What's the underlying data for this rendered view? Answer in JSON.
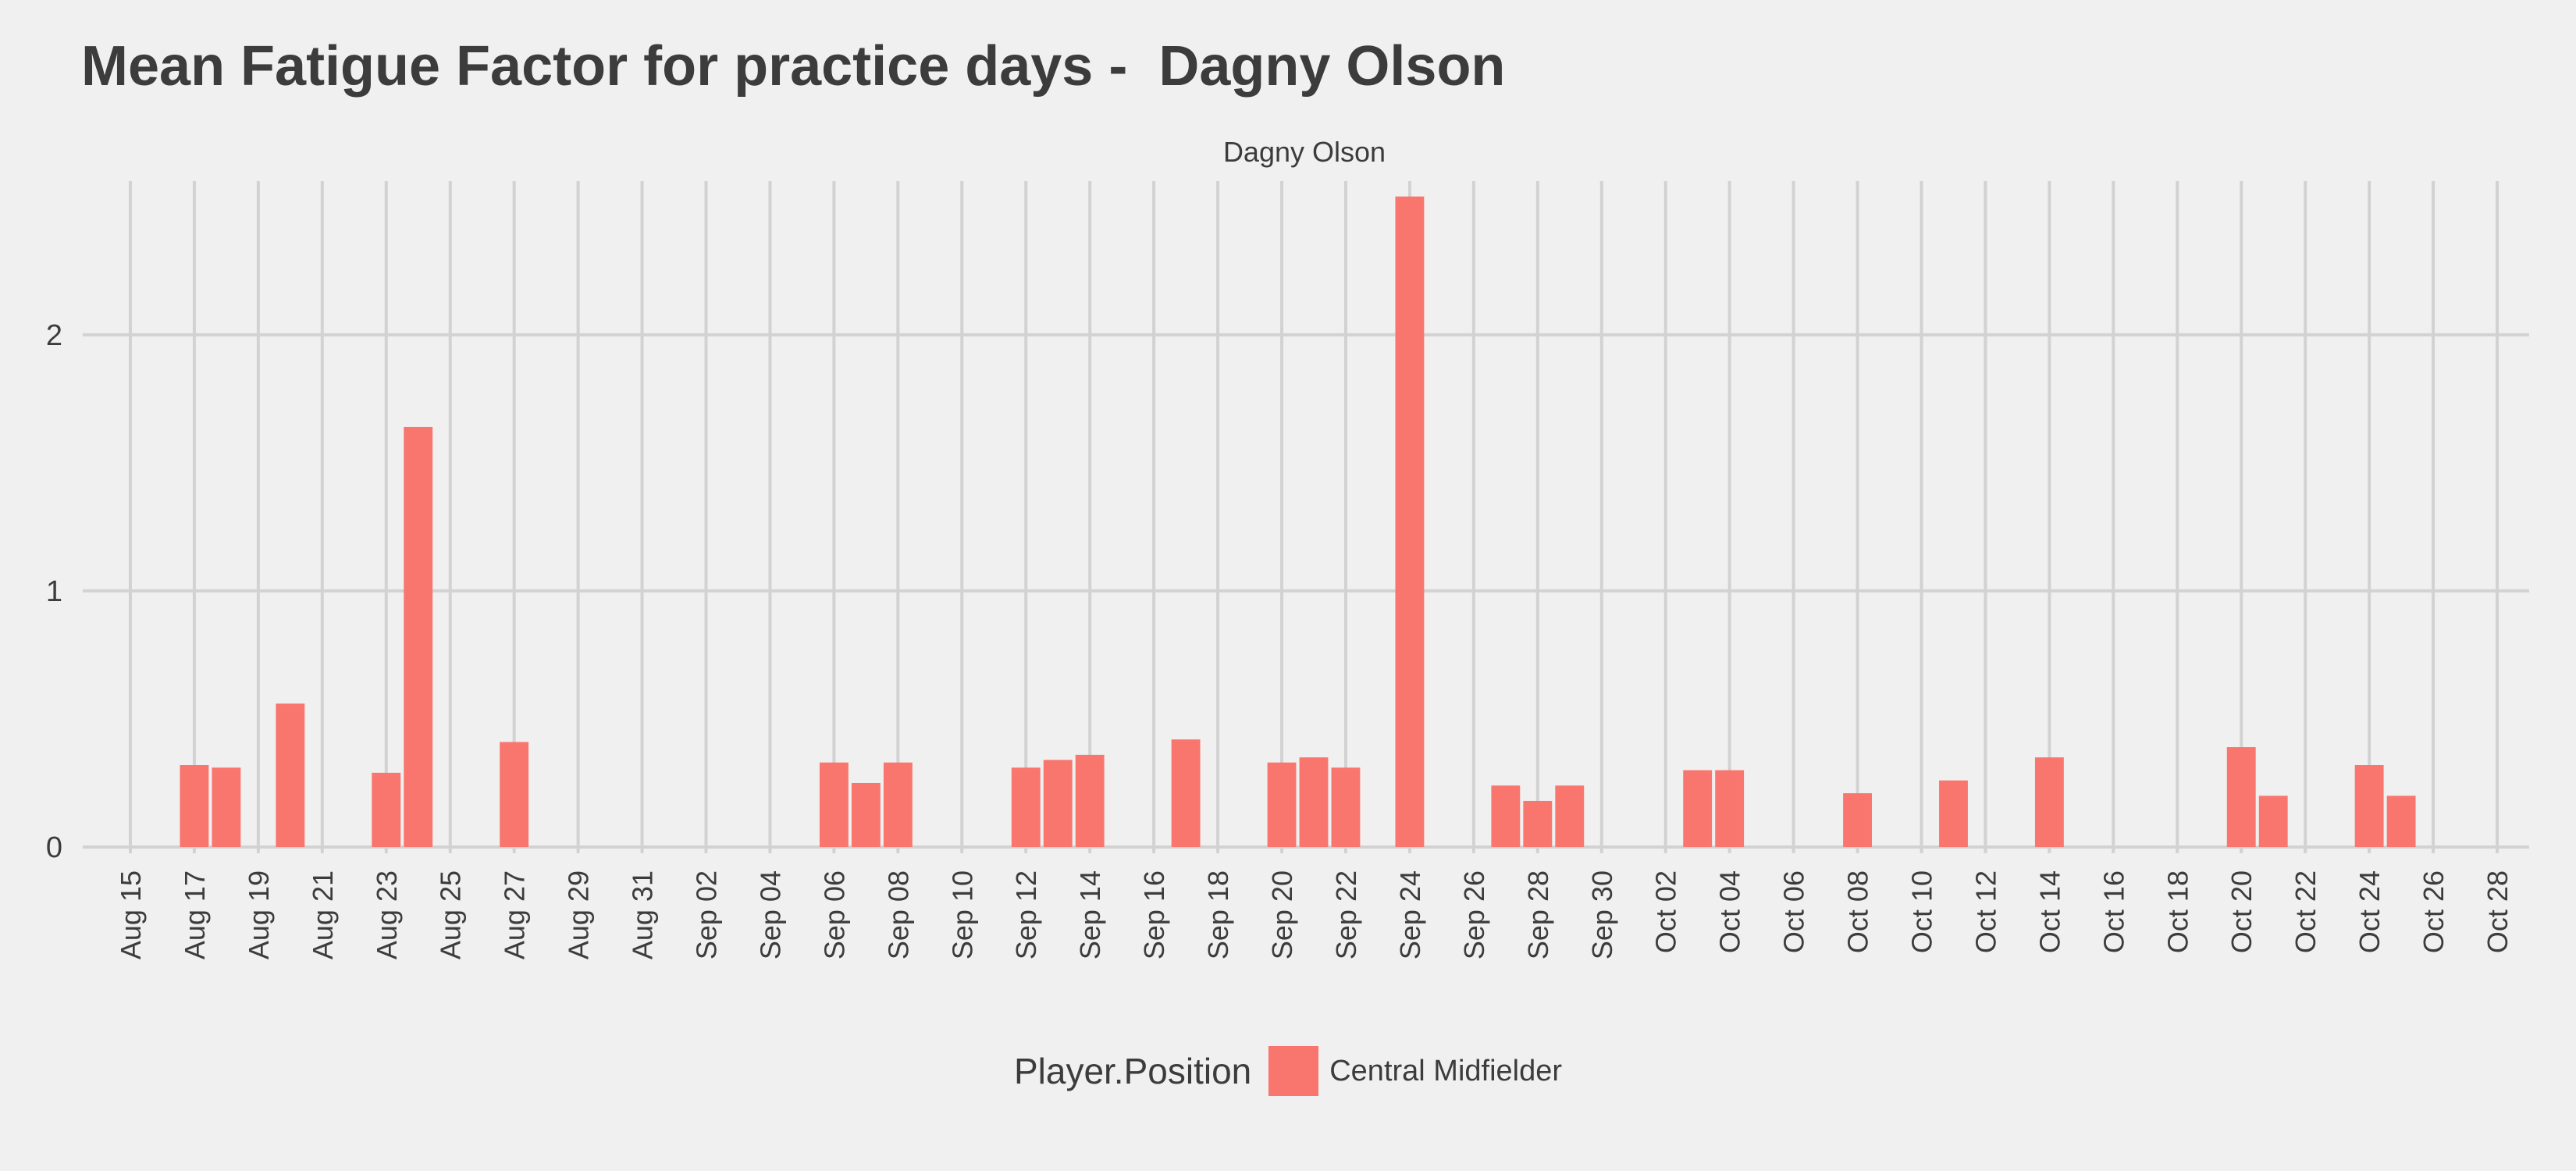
{
  "title": "Mean Fatigue Factor for practice days -  Dagny Olson",
  "colors": {
    "background": "#f0f0f0",
    "grid": "#d2d2d2",
    "bar": "#f8766d",
    "text": "#3c3c3c"
  },
  "legend": {
    "title": "Player.Position",
    "label": "Central Midfielder"
  },
  "chart_data": {
    "type": "bar",
    "facet_label": "Dagny Olson",
    "x_axis": {
      "type": "date",
      "range": [
        "2016-08-14",
        "2016-10-29"
      ],
      "ticks": [
        {
          "date": "2016-08-15",
          "label": "Aug 15"
        },
        {
          "date": "2016-08-17",
          "label": "Aug 17"
        },
        {
          "date": "2016-08-19",
          "label": "Aug 19"
        },
        {
          "date": "2016-08-21",
          "label": "Aug 21"
        },
        {
          "date": "2016-08-23",
          "label": "Aug 23"
        },
        {
          "date": "2016-08-25",
          "label": "Aug 25"
        },
        {
          "date": "2016-08-27",
          "label": "Aug 27"
        },
        {
          "date": "2016-08-29",
          "label": "Aug 29"
        },
        {
          "date": "2016-08-31",
          "label": "Aug 31"
        },
        {
          "date": "2016-09-02",
          "label": "Sep 02"
        },
        {
          "date": "2016-09-04",
          "label": "Sep 04"
        },
        {
          "date": "2016-09-06",
          "label": "Sep 06"
        },
        {
          "date": "2016-09-08",
          "label": "Sep 08"
        },
        {
          "date": "2016-09-10",
          "label": "Sep 10"
        },
        {
          "date": "2016-09-12",
          "label": "Sep 12"
        },
        {
          "date": "2016-09-14",
          "label": "Sep 14"
        },
        {
          "date": "2016-09-16",
          "label": "Sep 16"
        },
        {
          "date": "2016-09-18",
          "label": "Sep 18"
        },
        {
          "date": "2016-09-20",
          "label": "Sep 20"
        },
        {
          "date": "2016-09-22",
          "label": "Sep 22"
        },
        {
          "date": "2016-09-24",
          "label": "Sep 24"
        },
        {
          "date": "2016-09-26",
          "label": "Sep 26"
        },
        {
          "date": "2016-09-28",
          "label": "Sep 28"
        },
        {
          "date": "2016-09-30",
          "label": "Sep 30"
        },
        {
          "date": "2016-10-02",
          "label": "Oct 02"
        },
        {
          "date": "2016-10-04",
          "label": "Oct 04"
        },
        {
          "date": "2016-10-06",
          "label": "Oct 06"
        },
        {
          "date": "2016-10-08",
          "label": "Oct 08"
        },
        {
          "date": "2016-10-10",
          "label": "Oct 10"
        },
        {
          "date": "2016-10-12",
          "label": "Oct 12"
        },
        {
          "date": "2016-10-14",
          "label": "Oct 14"
        },
        {
          "date": "2016-10-16",
          "label": "Oct 16"
        },
        {
          "date": "2016-10-18",
          "label": "Oct 18"
        },
        {
          "date": "2016-10-20",
          "label": "Oct 20"
        },
        {
          "date": "2016-10-22",
          "label": "Oct 22"
        },
        {
          "date": "2016-10-24",
          "label": "Oct 24"
        },
        {
          "date": "2016-10-26",
          "label": "Oct 26"
        },
        {
          "date": "2016-10-28",
          "label": "Oct 28"
        }
      ]
    },
    "y_axis": {
      "range": [
        0,
        2.6
      ],
      "ticks": [
        0,
        1,
        2
      ]
    },
    "grid": true,
    "legend_position": "bottom",
    "series": [
      {
        "points": [
          {
            "x": "2016-08-17",
            "y": 0.32
          },
          {
            "x": "2016-08-18",
            "y": 0.31
          },
          {
            "x": "2016-08-20",
            "y": 0.56
          },
          {
            "x": "2016-08-23",
            "y": 0.29
          },
          {
            "x": "2016-08-24",
            "y": 1.64
          },
          {
            "x": "2016-08-27",
            "y": 0.41
          },
          {
            "x": "2016-09-06",
            "y": 0.33
          },
          {
            "x": "2016-09-07",
            "y": 0.25
          },
          {
            "x": "2016-09-08",
            "y": 0.33
          },
          {
            "x": "2016-09-12",
            "y": 0.31
          },
          {
            "x": "2016-09-13",
            "y": 0.34
          },
          {
            "x": "2016-09-14",
            "y": 0.36
          },
          {
            "x": "2016-09-17",
            "y": 0.42
          },
          {
            "x": "2016-09-20",
            "y": 0.33
          },
          {
            "x": "2016-09-21",
            "y": 0.35
          },
          {
            "x": "2016-09-22",
            "y": 0.31
          },
          {
            "x": "2016-09-24",
            "y": 2.54
          },
          {
            "x": "2016-09-27",
            "y": 0.24
          },
          {
            "x": "2016-09-28",
            "y": 0.18
          },
          {
            "x": "2016-09-29",
            "y": 0.24
          },
          {
            "x": "2016-10-03",
            "y": 0.3
          },
          {
            "x": "2016-10-04",
            "y": 0.3
          },
          {
            "x": "2016-10-08",
            "y": 0.21
          },
          {
            "x": "2016-10-11",
            "y": 0.26
          },
          {
            "x": "2016-10-14",
            "y": 0.35
          },
          {
            "x": "2016-10-20",
            "y": 0.39
          },
          {
            "x": "2016-10-21",
            "y": 0.2
          },
          {
            "x": "2016-10-24",
            "y": 0.32
          },
          {
            "x": "2016-10-25",
            "y": 0.2
          }
        ]
      }
    ]
  }
}
